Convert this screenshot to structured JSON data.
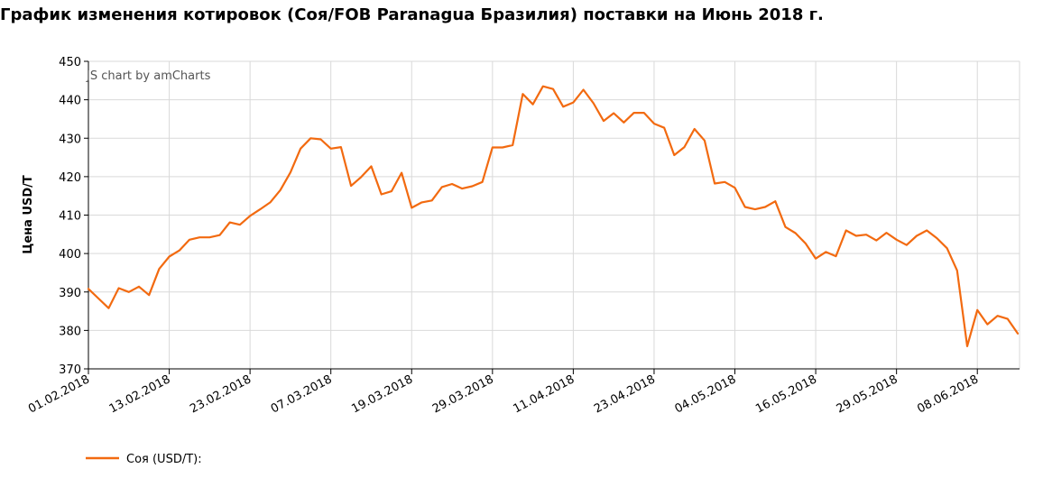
{
  "title": "График изменения котировок (Соя/FOB Paranagua Бразилия) поставки на Июнь 2018 г.",
  "watermark": "JS chart by amCharts",
  "chart_data": {
    "type": "line",
    "ylabel": "Цена USD/T",
    "xlabel": "",
    "ylim": [
      370,
      450
    ],
    "yticks": [
      370,
      380,
      390,
      400,
      410,
      420,
      430,
      440,
      450
    ],
    "grid": true,
    "legend_position": "bottom-left",
    "xtick_labels": [
      "01.02.2018",
      "13.02.2018",
      "23.02.2018",
      "07.03.2018",
      "19.03.2018",
      "29.03.2018",
      "11.04.2018",
      "23.04.2018",
      "04.05.2018",
      "16.05.2018",
      "29.05.2018",
      "08.06.2018"
    ],
    "xtick_index": [
      0,
      8,
      16,
      24,
      32,
      40,
      48,
      56,
      64,
      72,
      80,
      88
    ],
    "series": [
      {
        "name": "Соя (USD/T):",
        "color": "#f26a10",
        "values": [
          390.8,
          388.3,
          385.8,
          391.0,
          390.0,
          391.4,
          389.2,
          396.0,
          399.2,
          400.8,
          403.6,
          404.2,
          404.2,
          404.8,
          408.1,
          407.5,
          409.8,
          411.5,
          413.3,
          416.5,
          421.1,
          427.3,
          430.0,
          429.7,
          427.3,
          427.7,
          417.6,
          419.9,
          422.7,
          415.4,
          416.2,
          421.0,
          411.9,
          413.3,
          413.8,
          417.3,
          418.1,
          416.9,
          417.5,
          418.6,
          427.6,
          427.6,
          428.2,
          441.5,
          438.8,
          443.5,
          442.8,
          438.2,
          439.3,
          442.6,
          439.1,
          434.5,
          436.5,
          434.1,
          436.6,
          436.6,
          433.8,
          432.7,
          425.6,
          427.7,
          432.4,
          429.4,
          418.2,
          418.6,
          417.1,
          412.1,
          411.5,
          412.1,
          413.6,
          406.9,
          405.3,
          402.6,
          398.7,
          400.4,
          399.3,
          406.0,
          404.6,
          404.9,
          403.4,
          405.4,
          403.6,
          402.2,
          404.6,
          406.0,
          404.0,
          401.4,
          395.6,
          375.9,
          385.3,
          381.6,
          383.8,
          383.0,
          379.2
        ]
      }
    ]
  }
}
